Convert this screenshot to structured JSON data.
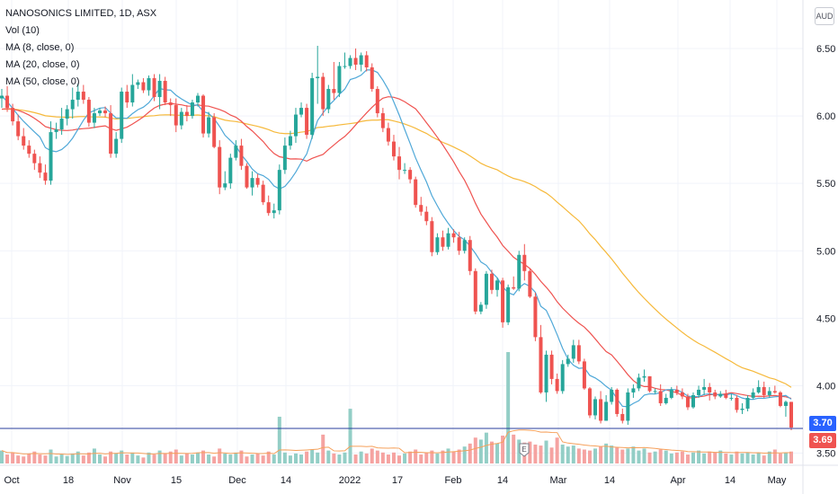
{
  "legend": {
    "title": "NANOSONICS LIMITED, 1D, ASX",
    "vol": "Vol (10)",
    "ma8": "MA (8, close, 0)",
    "ma20": "MA (20, close, 0)",
    "ma50": "MA (50, close, 0)"
  },
  "currency": "AUD",
  "price_tags": {
    "upper": "3.70",
    "lower": "3.69"
  },
  "earnings_badge": "E",
  "colors": {
    "up": "#26a69a",
    "down": "#ef5350",
    "vol_up": "#93cec6",
    "vol_down": "#f5a3a1",
    "ma8": "#4fa8d8",
    "ma20": "#ef5350",
    "ma50": "#f6b93b",
    "price_line": "#2a3f9c",
    "grid": "#f0f3fa",
    "axis_text": "#131722"
  },
  "chart_data": {
    "type": "candlestick",
    "title": "NANOSONICS LIMITED, 1D, ASX",
    "ylim": [
      3.42,
      6.7
    ],
    "y_ticks": [
      "3.50",
      "4.00",
      "4.50",
      "5.00",
      "5.50",
      "6.00",
      "6.50"
    ],
    "x_ticks": [
      "Oct",
      "18",
      "Nov",
      "15",
      "Dec",
      "14",
      "2022",
      "17",
      "Feb",
      "14",
      "Mar",
      "14",
      "Apr",
      "14",
      "May"
    ],
    "last_price": 3.69,
    "open": [
      6.13,
      6.15,
      6.06,
      5.96,
      5.85,
      5.78,
      5.72,
      5.65,
      5.58,
      5.52,
      5.88,
      5.9,
      5.98,
      6.05,
      6.12,
      6.18,
      6.12,
      5.95,
      6.02,
      6.04,
      6.02,
      5.72,
      5.83,
      6.18,
      6.1,
      6.23,
      6.25,
      6.19,
      6.28,
      6.14,
      6.26,
      6.1,
      6.08,
      5.93,
      6.03,
      6.0,
      6.1,
      6.15,
      5.87,
      5.99,
      5.77,
      5.47,
      5.5,
      5.69,
      5.78,
      5.63,
      5.47,
      5.54,
      5.49,
      5.36,
      5.28,
      5.3,
      5.6,
      5.78,
      5.85,
      6.01,
      6.06,
      5.86,
      6.28,
      6.29,
      6.05,
      6.2,
      6.17,
      6.37,
      6.37,
      6.43,
      6.38,
      6.45,
      6.36,
      6.2,
      6.02,
      5.91,
      5.81,
      5.7,
      5.6,
      5.6,
      5.53,
      5.34,
      5.29,
      5.22,
      4.99,
      5.1,
      5.03,
      5.13,
      5.1,
      5.0,
      5.08,
      4.85,
      4.55,
      4.6,
      4.83,
      4.71,
      4.78,
      4.47,
      4.73,
      4.72,
      4.97,
      4.85,
      4.66,
      4.36,
      3.95,
      4.23,
      4.05,
      3.96,
      4.16,
      4.2,
      4.3,
      4.18,
      3.98,
      3.78,
      3.9,
      3.74,
      3.88,
      3.97,
      3.79,
      3.74,
      3.95,
      3.98,
      4.06,
      4.07,
      3.96,
      3.96,
      3.87,
      3.91,
      3.97,
      3.95,
      3.92,
      3.84,
      3.93,
      3.97,
      3.99,
      3.95,
      3.92,
      3.94,
      3.91,
      3.91,
      3.82,
      3.83,
      3.91,
      3.95,
      3.99,
      3.93,
      3.96,
      3.95,
      3.85,
      3.88
    ],
    "high": [
      6.2,
      6.22,
      6.09,
      6.01,
      5.91,
      5.82,
      5.75,
      5.7,
      5.64,
      5.96,
      5.95,
      6.06,
      6.08,
      6.21,
      6.24,
      6.23,
      6.14,
      6.06,
      6.06,
      6.07,
      6.08,
      5.88,
      6.21,
      6.23,
      6.31,
      6.27,
      6.28,
      6.3,
      6.31,
      6.31,
      6.29,
      6.13,
      6.13,
      6.06,
      6.08,
      6.12,
      6.17,
      6.16,
      6.03,
      6.02,
      5.82,
      5.59,
      5.72,
      5.82,
      5.83,
      5.65,
      5.59,
      5.57,
      5.52,
      5.41,
      5.35,
      5.64,
      5.84,
      5.89,
      6.06,
      6.1,
      6.09,
      6.32,
      6.52,
      6.32,
      6.23,
      6.4,
      6.4,
      6.47,
      6.45,
      6.5,
      6.47,
      6.48,
      6.39,
      6.22,
      6.06,
      5.95,
      5.86,
      5.77,
      5.65,
      5.62,
      5.55,
      5.4,
      5.33,
      5.25,
      5.13,
      5.15,
      5.17,
      5.16,
      5.14,
      5.1,
      5.11,
      4.87,
      4.62,
      4.85,
      4.86,
      4.8,
      4.8,
      4.75,
      4.81,
      5.0,
      5.05,
      4.87,
      4.69,
      4.45,
      4.26,
      4.26,
      4.09,
      4.19,
      4.23,
      4.34,
      4.34,
      4.2,
      3.99,
      3.92,
      3.96,
      3.93,
      3.99,
      3.98,
      3.83,
      3.98,
      4.01,
      4.09,
      4.12,
      4.07,
      3.98,
      4.01,
      3.94,
      3.99,
      4.0,
      3.98,
      3.94,
      3.95,
      4.0,
      4.05,
      4.02,
      3.97,
      3.96,
      3.97,
      3.94,
      3.93,
      3.87,
      3.93,
      3.98,
      4.04,
      4.03,
      3.99,
      4.0,
      3.96,
      3.89,
      3.88
    ],
    "low": [
      6.06,
      6.03,
      5.93,
      5.82,
      5.75,
      5.69,
      5.6,
      5.54,
      5.49,
      5.49,
      5.83,
      5.86,
      5.93,
      5.98,
      6.07,
      6.09,
      5.92,
      5.91,
      6.0,
      5.99,
      5.69,
      5.69,
      5.8,
      6.06,
      6.07,
      6.2,
      6.17,
      6.15,
      6.11,
      6.05,
      6.08,
      6.0,
      5.88,
      5.9,
      5.96,
      5.98,
      6.07,
      5.84,
      5.84,
      5.76,
      5.42,
      5.45,
      5.46,
      5.67,
      5.6,
      5.46,
      5.41,
      5.47,
      5.34,
      5.26,
      5.24,
      5.27,
      5.57,
      5.75,
      5.8,
      5.99,
      5.83,
      5.83,
      6.09,
      6.0,
      6.02,
      6.12,
      6.14,
      6.35,
      6.35,
      6.34,
      6.33,
      6.33,
      6.18,
      5.99,
      5.88,
      5.78,
      5.67,
      5.53,
      5.57,
      5.5,
      5.32,
      5.26,
      5.19,
      4.96,
      4.97,
      5.0,
      5.01,
      5.06,
      4.97,
      4.98,
      4.82,
      4.53,
      4.53,
      4.57,
      4.68,
      4.66,
      4.43,
      4.45,
      4.71,
      4.7,
      4.78,
      4.65,
      4.33,
      3.94,
      3.88,
      4.01,
      3.94,
      3.94,
      4.14,
      4.17,
      4.16,
      3.97,
      3.76,
      3.75,
      3.72,
      3.74,
      3.86,
      3.77,
      3.72,
      3.71,
      3.91,
      3.96,
      4.03,
      3.95,
      3.94,
      3.85,
      3.86,
      3.9,
      3.93,
      3.9,
      3.82,
      3.83,
      3.91,
      3.93,
      3.89,
      3.9,
      3.91,
      3.9,
      3.89,
      3.8,
      3.79,
      3.81,
      3.9,
      3.94,
      3.91,
      3.91,
      3.94,
      3.84,
      3.77,
      3.67
    ],
    "close": [
      6.15,
      6.06,
      5.96,
      5.85,
      5.78,
      5.72,
      5.65,
      5.58,
      5.52,
      5.88,
      5.9,
      5.98,
      6.05,
      6.12,
      6.18,
      6.12,
      5.95,
      6.02,
      6.04,
      6.02,
      5.72,
      5.83,
      6.18,
      6.1,
      6.23,
      6.25,
      6.19,
      6.28,
      6.14,
      6.26,
      6.1,
      6.08,
      5.93,
      6.03,
      6.0,
      6.1,
      6.15,
      5.87,
      5.99,
      5.77,
      5.47,
      5.5,
      5.69,
      5.78,
      5.63,
      5.47,
      5.54,
      5.49,
      5.36,
      5.28,
      5.3,
      5.6,
      5.78,
      5.85,
      6.01,
      6.06,
      5.86,
      6.28,
      6.29,
      6.05,
      6.2,
      6.17,
      6.37,
      6.37,
      6.43,
      6.38,
      6.45,
      6.36,
      6.2,
      6.02,
      5.91,
      5.81,
      5.7,
      5.6,
      5.6,
      5.53,
      5.34,
      5.29,
      5.22,
      4.99,
      5.1,
      5.03,
      5.13,
      5.1,
      5.0,
      5.08,
      4.85,
      4.55,
      4.6,
      4.83,
      4.71,
      4.78,
      4.47,
      4.73,
      4.72,
      4.97,
      4.85,
      4.66,
      4.36,
      3.95,
      4.23,
      4.05,
      3.96,
      4.16,
      4.2,
      4.3,
      4.18,
      3.98,
      3.78,
      3.9,
      3.74,
      3.88,
      3.97,
      3.79,
      3.74,
      3.95,
      3.98,
      4.06,
      4.07,
      3.96,
      3.96,
      3.87,
      3.91,
      3.97,
      3.95,
      3.92,
      3.84,
      3.93,
      3.97,
      3.99,
      3.95,
      3.92,
      3.94,
      3.91,
      3.91,
      3.82,
      3.83,
      3.91,
      3.95,
      3.99,
      3.93,
      3.96,
      3.95,
      3.85,
      3.88,
      3.69
    ],
    "volume": [
      26,
      18,
      22,
      16,
      14,
      20,
      24,
      18,
      16,
      28,
      14,
      18,
      15,
      20,
      24,
      16,
      22,
      30,
      18,
      14,
      24,
      20,
      26,
      18,
      22,
      16,
      12,
      22,
      18,
      26,
      20,
      24,
      28,
      16,
      20,
      18,
      22,
      26,
      18,
      14,
      30,
      20,
      18,
      22,
      26,
      14,
      18,
      20,
      16,
      24,
      18,
      94,
      22,
      16,
      20,
      18,
      24,
      28,
      22,
      58,
      26,
      20,
      18,
      22,
      110,
      18,
      24,
      20,
      30,
      26,
      22,
      18,
      22,
      16,
      20,
      24,
      28,
      18,
      22,
      26,
      20,
      26,
      30,
      24,
      28,
      34,
      40,
      52,
      48,
      62,
      44,
      40,
      56,
      224,
      58,
      48,
      42,
      44,
      38,
      36,
      46,
      32,
      52,
      38,
      34,
      36,
      30,
      28,
      26,
      30,
      34,
      40,
      36,
      32,
      28,
      30,
      34,
      26,
      30,
      22,
      24,
      28,
      26,
      20,
      22,
      24,
      18,
      22,
      26,
      20,
      24,
      22,
      26,
      20,
      18,
      24,
      20,
      22,
      18,
      22,
      16,
      24,
      28,
      20,
      22,
      24
    ]
  }
}
